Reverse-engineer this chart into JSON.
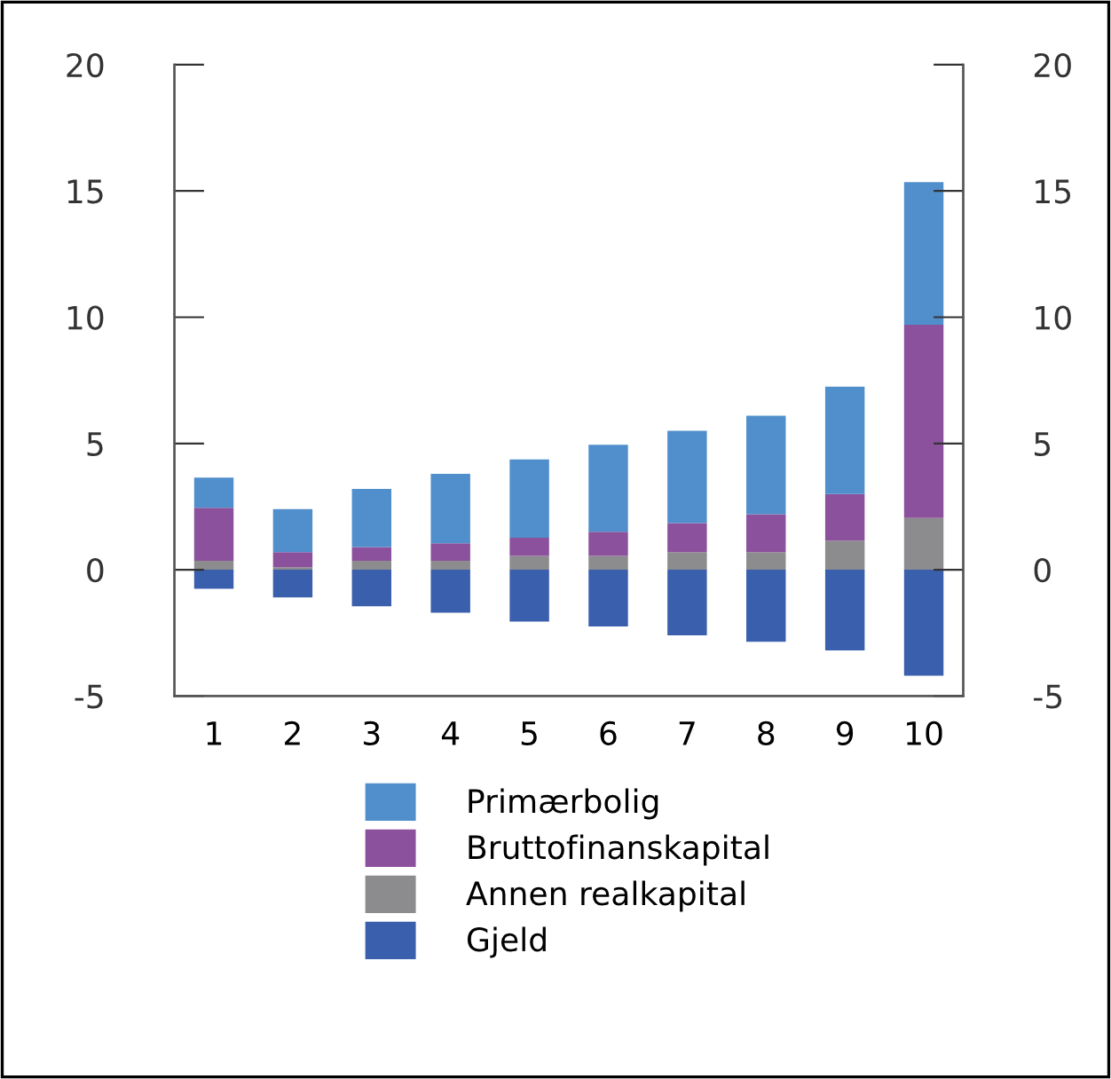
{
  "chart_data": {
    "type": "bar",
    "stacked": true,
    "categories": [
      "1",
      "2",
      "3",
      "4",
      "5",
      "6",
      "7",
      "8",
      "9",
      "10"
    ],
    "series": [
      {
        "name": "Gjeld",
        "color": "#3a5fac",
        "values": [
          -0.75,
          -1.1,
          -1.45,
          -1.7,
          -2.05,
          -2.25,
          -2.6,
          -2.85,
          -3.2,
          -4.2
        ]
      },
      {
        "name": "Annen realkapital",
        "color": "#8c8c8f",
        "values": [
          0.35,
          0.1,
          0.35,
          0.35,
          0.55,
          0.55,
          0.7,
          0.7,
          1.15,
          2.05
        ]
      },
      {
        "name": "Bruttofinanskapital",
        "color": "#8c519c",
        "values": [
          2.1,
          0.6,
          0.55,
          0.7,
          0.72,
          0.95,
          1.15,
          1.5,
          1.85,
          7.65
        ]
      },
      {
        "name": "Primærbolig",
        "color": "#508fcc",
        "values": [
          1.2,
          1.7,
          2.3,
          2.75,
          3.1,
          3.45,
          3.65,
          3.9,
          4.25,
          5.65
        ]
      }
    ],
    "ylim": [
      -5,
      20
    ],
    "yticks": [
      -5,
      0,
      5,
      10,
      15,
      20
    ],
    "y2lim": [
      -5,
      20
    ],
    "y2ticks": [
      -5,
      0,
      5,
      10,
      15,
      20
    ],
    "grid": false,
    "legend": "bottom"
  }
}
